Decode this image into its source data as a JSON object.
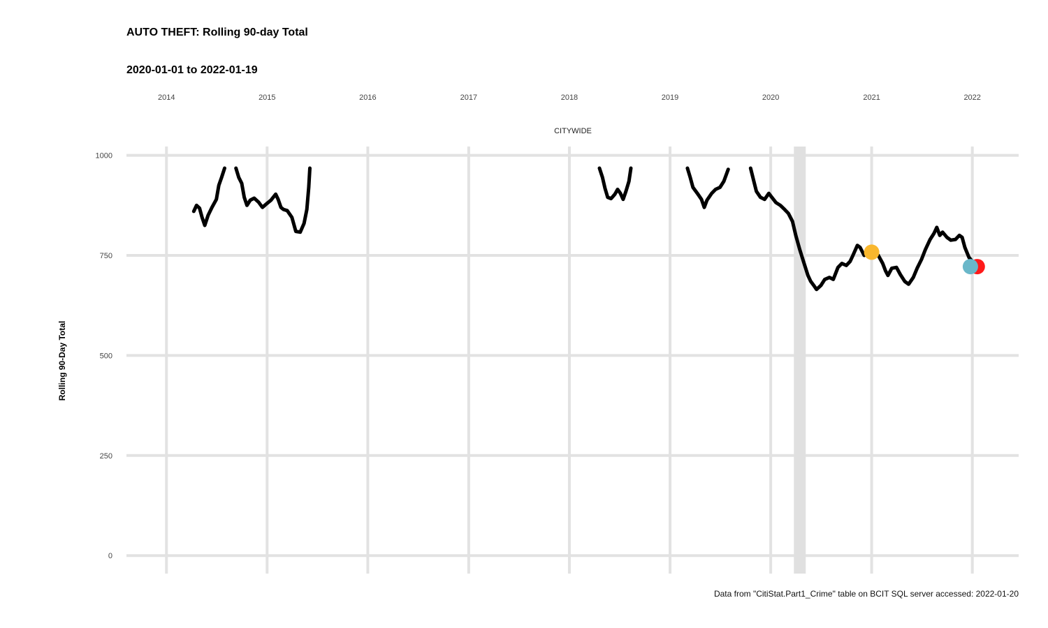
{
  "chart_data": {
    "type": "line",
    "title": "AUTO THEFT: Rolling 90-day Total",
    "subtitle": "2020-01-01 to 2022-01-19",
    "facet": "CITYWIDE",
    "xlabel": "",
    "ylabel": "Rolling 90-Day Total",
    "caption": "Data from \"CitiStat.Part1_Crime\" table on BCIT SQL server accessed: 2022-01-20",
    "x_ticks": [
      "2014",
      "2015",
      "2016",
      "2017",
      "2018",
      "2019",
      "2020",
      "2021",
      "2022"
    ],
    "y_ticks": [
      0,
      250,
      500,
      750,
      1000
    ],
    "xlim": [
      "2013-08-09",
      "2022-06-18"
    ],
    "ylim": [
      -45,
      1022
    ],
    "grid": true,
    "shaded_range": [
      "2020-03-25",
      "2020-05-07"
    ],
    "series": [
      {
        "color": "#000000",
        "segments": [
          [
            [
              "2014-04-10",
              860
            ],
            [
              "2014-04-20",
              875
            ],
            [
              "2014-05-01",
              868
            ],
            [
              "2014-05-10",
              845
            ],
            [
              "2014-05-20",
              825
            ],
            [
              "2014-06-01",
              850
            ],
            [
              "2014-06-15",
              870
            ],
            [
              "2014-07-01",
              890
            ],
            [
              "2014-07-10",
              925
            ],
            [
              "2014-07-20",
              945
            ],
            [
              "2014-07-31",
              968
            ]
          ],
          [
            [
              "2014-09-10",
              968
            ],
            [
              "2014-09-20",
              945
            ],
            [
              "2014-10-01",
              930
            ],
            [
              "2014-10-10",
              895
            ],
            [
              "2014-10-20",
              875
            ],
            [
              "2014-11-01",
              888
            ],
            [
              "2014-11-15",
              893
            ],
            [
              "2014-12-01",
              883
            ],
            [
              "2014-12-15",
              870
            ],
            [
              "2015-01-01",
              880
            ],
            [
              "2015-01-15",
              888
            ],
            [
              "2015-02-01",
              903
            ],
            [
              "2015-02-10",
              890
            ],
            [
              "2015-02-20",
              870
            ],
            [
              "2015-03-01",
              865
            ],
            [
              "2015-03-15",
              862
            ],
            [
              "2015-04-01",
              845
            ],
            [
              "2015-04-15",
              810
            ],
            [
              "2015-05-01",
              808
            ],
            [
              "2015-05-15",
              830
            ],
            [
              "2015-05-25",
              865
            ],
            [
              "2015-06-01",
              920
            ],
            [
              "2015-06-05",
              968
            ]
          ],
          [
            [
              "2018-04-20",
              968
            ],
            [
              "2018-05-01",
              945
            ],
            [
              "2018-05-10",
              918
            ],
            [
              "2018-05-20",
              895
            ],
            [
              "2018-06-01",
              892
            ],
            [
              "2018-06-15",
              903
            ],
            [
              "2018-06-25",
              915
            ],
            [
              "2018-07-05",
              905
            ],
            [
              "2018-07-15",
              890
            ],
            [
              "2018-07-25",
              910
            ],
            [
              "2018-08-05",
              935
            ],
            [
              "2018-08-12",
              968
            ]
          ],
          [
            [
              "2019-03-05",
              968
            ],
            [
              "2019-03-15",
              945
            ],
            [
              "2019-03-25",
              920
            ],
            [
              "2019-04-10",
              905
            ],
            [
              "2019-04-25",
              890
            ],
            [
              "2019-05-05",
              870
            ],
            [
              "2019-05-15",
              888
            ],
            [
              "2019-06-01",
              905
            ],
            [
              "2019-06-15",
              915
            ],
            [
              "2019-07-01",
              920
            ],
            [
              "2019-07-15",
              935
            ],
            [
              "2019-07-31",
              965
            ]
          ],
          [
            [
              "2019-10-20",
              968
            ],
            [
              "2019-11-01",
              935
            ],
            [
              "2019-11-10",
              910
            ],
            [
              "2019-11-25",
              895
            ],
            [
              "2019-12-10",
              890
            ],
            [
              "2019-12-25",
              905
            ],
            [
              "2020-01-05",
              895
            ],
            [
              "2020-01-20",
              882
            ],
            [
              "2020-02-05",
              875
            ],
            [
              "2020-02-20",
              865
            ],
            [
              "2020-03-05",
              855
            ],
            [
              "2020-03-20",
              835
            ],
            [
              "2020-04-01",
              800
            ],
            [
              "2020-04-15",
              765
            ],
            [
              "2020-05-01",
              730
            ],
            [
              "2020-05-15",
              700
            ],
            [
              "2020-05-25",
              685
            ],
            [
              "2020-06-05",
              675
            ],
            [
              "2020-06-15",
              665
            ],
            [
              "2020-07-01",
              675
            ],
            [
              "2020-07-15",
              690
            ],
            [
              "2020-08-01",
              695
            ],
            [
              "2020-08-15",
              690
            ],
            [
              "2020-09-01",
              720
            ],
            [
              "2020-09-15",
              730
            ],
            [
              "2020-10-01",
              725
            ],
            [
              "2020-10-15",
              735
            ],
            [
              "2020-10-25",
              750
            ],
            [
              "2020-11-10",
              775
            ],
            [
              "2020-11-20",
              770
            ],
            [
              "2020-12-05",
              750
            ],
            [
              "2020-12-15",
              760
            ],
            [
              "2020-12-25",
              750
            ],
            [
              "2021-01-10",
              758
            ],
            [
              "2021-01-25",
              750
            ],
            [
              "2021-02-10",
              730
            ],
            [
              "2021-02-20",
              712
            ],
            [
              "2021-03-01",
              700
            ],
            [
              "2021-03-15",
              718
            ],
            [
              "2021-04-01",
              720
            ],
            [
              "2021-04-15",
              702
            ],
            [
              "2021-05-01",
              685
            ],
            [
              "2021-05-15",
              678
            ],
            [
              "2021-06-01",
              695
            ],
            [
              "2021-06-15",
              718
            ],
            [
              "2021-07-01",
              740
            ],
            [
              "2021-07-15",
              765
            ],
            [
              "2021-08-01",
              790
            ],
            [
              "2021-08-15",
              805
            ],
            [
              "2021-08-25",
              820
            ],
            [
              "2021-09-05",
              800
            ],
            [
              "2021-09-15",
              808
            ],
            [
              "2021-10-01",
              795
            ],
            [
              "2021-10-15",
              788
            ],
            [
              "2021-11-01",
              790
            ],
            [
              "2021-11-15",
              800
            ],
            [
              "2021-11-25",
              795
            ],
            [
              "2021-12-05",
              770
            ],
            [
              "2021-12-20",
              745
            ],
            [
              "2022-01-01",
              735
            ],
            [
              "2022-01-10",
              728
            ],
            [
              "2022-01-19",
              722
            ]
          ]
        ]
      }
    ],
    "points": [
      {
        "x": "2021-01-01",
        "y": 758,
        "color": "#F9B72E"
      },
      {
        "x": "2022-01-19",
        "y": 722,
        "color": "#FF1A1A"
      },
      {
        "x": "2021-12-25",
        "y": 722,
        "color": "#6AB7C9"
      }
    ]
  }
}
